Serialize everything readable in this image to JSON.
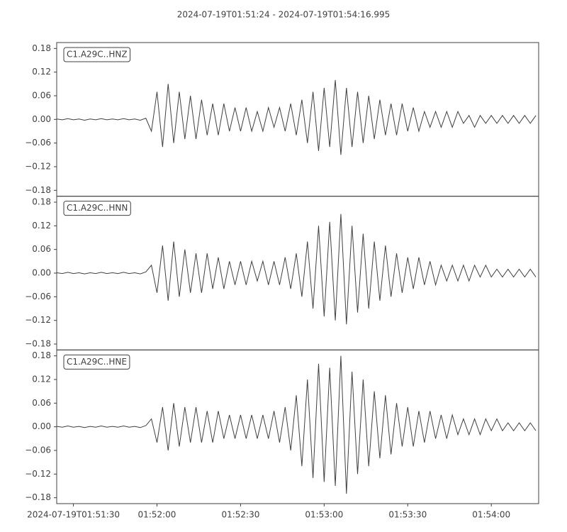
{
  "chart_data": {
    "type": "line",
    "title": "2024-07-19T01:51:24  -  2024-07-19T01:54:16.995",
    "x": [
      "01:51:24",
      "01:51:26",
      "01:51:28",
      "01:51:30",
      "01:51:32",
      "01:51:34",
      "01:51:36",
      "01:51:38",
      "01:51:40",
      "01:51:42",
      "01:51:44",
      "01:51:46",
      "01:51:48",
      "01:51:50",
      "01:51:52",
      "01:51:54",
      "01:51:56",
      "01:51:58",
      "01:52:00",
      "01:52:02",
      "01:52:04",
      "01:52:06",
      "01:52:08",
      "01:52:10",
      "01:52:12",
      "01:52:14",
      "01:52:16",
      "01:52:18",
      "01:52:20",
      "01:52:22",
      "01:52:24",
      "01:52:26",
      "01:52:28",
      "01:52:30",
      "01:52:32",
      "01:52:34",
      "01:52:36",
      "01:52:38",
      "01:52:40",
      "01:52:42",
      "01:52:44",
      "01:52:46",
      "01:52:48",
      "01:52:50",
      "01:52:52",
      "01:52:54",
      "01:52:56",
      "01:52:58",
      "01:53:00",
      "01:53:02",
      "01:53:04",
      "01:53:06",
      "01:53:08",
      "01:53:10",
      "01:53:12",
      "01:53:14",
      "01:53:16",
      "01:53:18",
      "01:53:20",
      "01:53:22",
      "01:53:24",
      "01:53:26",
      "01:53:28",
      "01:53:30",
      "01:53:32",
      "01:53:34",
      "01:53:36",
      "01:53:38",
      "01:53:40",
      "01:53:42",
      "01:53:44",
      "01:53:46",
      "01:53:48",
      "01:53:50",
      "01:53:52",
      "01:53:54",
      "01:53:56",
      "01:53:58",
      "01:54:00",
      "01:54:02",
      "01:54:04",
      "01:54:06",
      "01:54:08",
      "01:54:10",
      "01:54:12",
      "01:54:14",
      "01:54:16"
    ],
    "xlim": [
      "01:51:24",
      "01:54:16.995"
    ],
    "xticks": [
      {
        "value": "01:51:30",
        "label": "2024-07-19T01:51:30"
      },
      "01:52:00",
      "01:52:30",
      "01:53:00",
      "01:53:30",
      "01:54:00"
    ],
    "ylim": [
      -0.195,
      0.195
    ],
    "yticks": [
      {
        "value": -0.18,
        "label": "−0.18"
      },
      {
        "value": -0.12,
        "label": "−0.12"
      },
      {
        "value": -0.06,
        "label": "−0.06"
      },
      {
        "value": 0,
        "label": "0.00"
      },
      {
        "value": 0.06,
        "label": "0.06"
      },
      {
        "value": 0.12,
        "label": "0.12"
      },
      {
        "value": 0.18,
        "label": "0.18"
      }
    ],
    "series": [
      {
        "name": "C1.A29C..HNZ",
        "color": "#404040",
        "values": [
          0.001,
          -0.001,
          0.002,
          -0.001,
          0.001,
          -0.002,
          0.001,
          -0.001,
          0.002,
          -0.001,
          0.001,
          -0.001,
          0.002,
          -0.001,
          0.001,
          -0.002,
          0.003,
          -0.03,
          0.07,
          -0.07,
          0.09,
          -0.06,
          0.07,
          -0.05,
          0.06,
          -0.05,
          0.05,
          -0.04,
          0.04,
          -0.04,
          0.04,
          -0.03,
          0.03,
          -0.03,
          0.03,
          -0.03,
          0.02,
          -0.03,
          0.03,
          -0.02,
          0.03,
          -0.03,
          0.04,
          -0.04,
          0.05,
          -0.06,
          0.07,
          -0.08,
          0.08,
          -0.07,
          0.1,
          -0.09,
          0.08,
          -0.07,
          0.07,
          -0.06,
          0.06,
          -0.05,
          0.05,
          -0.04,
          0.04,
          -0.04,
          0.04,
          -0.03,
          0.03,
          -0.03,
          0.02,
          -0.02,
          0.02,
          -0.02,
          0.02,
          -0.02,
          0.02,
          -0.01,
          0.01,
          -0.02,
          0.01,
          -0.01,
          0.01,
          -0.01,
          0.01,
          -0.01,
          0.01,
          -0.01,
          0.01,
          -0.01,
          0.01
        ]
      },
      {
        "name": "C1.A29C..HNN",
        "color": "#404040",
        "values": [
          0.001,
          -0.001,
          0.002,
          -0.001,
          0.001,
          -0.002,
          0.001,
          -0.001,
          0.002,
          -0.001,
          0.001,
          -0.001,
          0.002,
          -0.001,
          0.001,
          -0.002,
          0.003,
          0.02,
          -0.05,
          0.07,
          -0.07,
          0.08,
          -0.06,
          0.06,
          -0.05,
          0.05,
          -0.05,
          0.05,
          -0.04,
          0.04,
          -0.04,
          0.03,
          -0.03,
          0.03,
          -0.03,
          0.03,
          -0.02,
          0.03,
          -0.03,
          0.03,
          -0.03,
          0.04,
          -0.04,
          0.05,
          -0.06,
          0.08,
          -0.09,
          0.12,
          -0.11,
          0.13,
          -0.12,
          0.15,
          -0.13,
          0.12,
          -0.1,
          0.1,
          -0.09,
          0.08,
          -0.07,
          0.07,
          -0.06,
          0.05,
          -0.05,
          0.04,
          -0.04,
          0.04,
          -0.03,
          0.03,
          -0.03,
          0.02,
          -0.02,
          0.02,
          -0.02,
          0.02,
          -0.02,
          0.02,
          -0.01,
          0.02,
          -0.01,
          0.01,
          -0.01,
          0.01,
          -0.01,
          0.01,
          -0.01,
          0.01,
          -0.01
        ]
      },
      {
        "name": "C1.A29C..HNE",
        "color": "#404040",
        "values": [
          0.001,
          -0.001,
          0.002,
          -0.001,
          0.001,
          -0.002,
          0.001,
          -0.001,
          0.002,
          -0.001,
          0.001,
          -0.001,
          0.002,
          -0.001,
          0.001,
          -0.002,
          0.003,
          0.02,
          -0.04,
          0.05,
          -0.06,
          0.06,
          -0.05,
          0.05,
          -0.04,
          0.05,
          -0.04,
          0.04,
          -0.04,
          0.04,
          -0.03,
          0.03,
          -0.03,
          0.03,
          -0.03,
          0.03,
          -0.03,
          0.03,
          -0.03,
          0.04,
          -0.04,
          0.05,
          -0.06,
          0.08,
          -0.1,
          0.12,
          -0.13,
          0.16,
          -0.14,
          0.15,
          -0.15,
          0.18,
          -0.17,
          0.14,
          -0.12,
          0.12,
          -0.1,
          0.09,
          -0.08,
          0.08,
          -0.07,
          0.06,
          -0.05,
          0.05,
          -0.05,
          0.04,
          -0.04,
          0.04,
          -0.03,
          0.03,
          -0.03,
          0.03,
          -0.02,
          0.02,
          -0.02,
          0.02,
          -0.02,
          0.02,
          -0.01,
          0.02,
          -0.01,
          0.01,
          -0.01,
          0.01,
          -0.01,
          0.01,
          -0.01
        ]
      }
    ]
  }
}
